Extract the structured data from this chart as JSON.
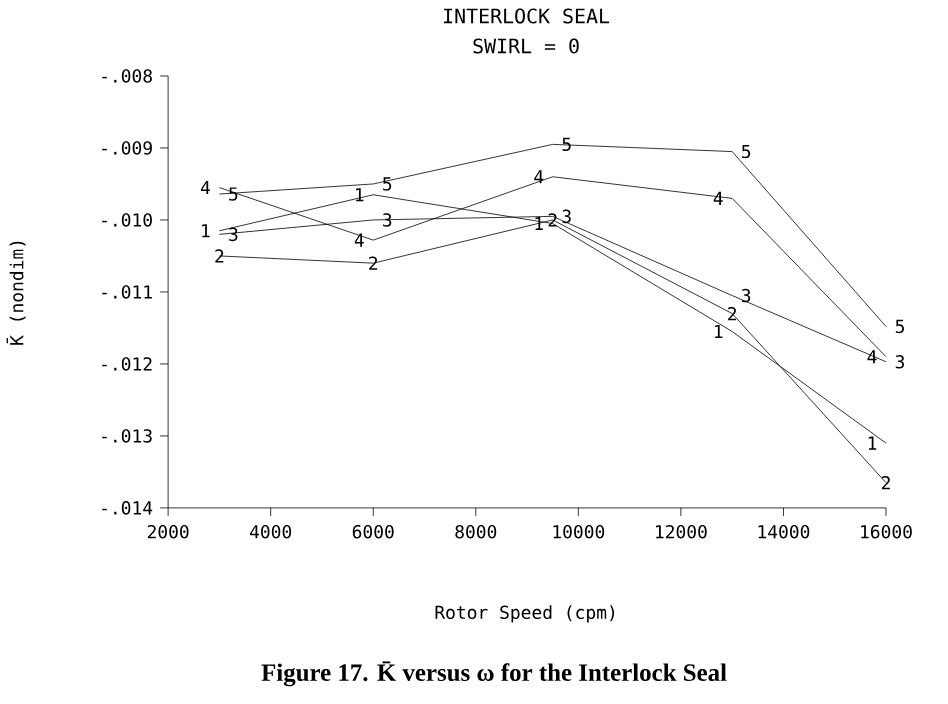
{
  "chart_data": {
    "type": "line",
    "title": "INTERLOCK SEAL",
    "subtitle": "SWIRL = 0",
    "xlabel": "Rotor Speed (cpm)",
    "ylabel": "K̄ (nondim)",
    "annotations": [
      "Figure 17. K̄ versus ω for the Interlock Seal"
    ],
    "x": [
      3000,
      6000,
      9500,
      13000,
      16000
    ],
    "xlim": [
      2000,
      16000
    ],
    "xticks": [
      2000,
      4000,
      6000,
      8000,
      10000,
      12000,
      14000,
      16000
    ],
    "ylim": [
      -0.014,
      -0.008
    ],
    "yticks": [
      {
        "value": -0.014,
        "label": "-.014"
      },
      {
        "value": -0.013,
        "label": "-.013"
      },
      {
        "value": -0.012,
        "label": "-.012"
      },
      {
        "value": -0.011,
        "label": "-.011"
      },
      {
        "value": -0.01,
        "label": "-.010"
      },
      {
        "value": -0.009,
        "label": "-.009"
      },
      {
        "value": -0.008,
        "label": "-.008"
      }
    ],
    "series": [
      {
        "name": "1",
        "color": "#000000",
        "values": [
          -0.01015,
          -0.00965,
          -0.01005,
          -0.01155,
          -0.0131
        ]
      },
      {
        "name": "2",
        "color": "#000000",
        "values": [
          -0.0105,
          -0.0106,
          -0.01,
          -0.0113,
          -0.01365
        ]
      },
      {
        "name": "3",
        "color": "#000000",
        "values": [
          -0.0102,
          -0.01,
          -0.00995,
          -0.01105,
          -0.01197
        ]
      },
      {
        "name": "4",
        "color": "#000000",
        "values": [
          -0.00955,
          -0.01028,
          -0.0094,
          -0.0097,
          -0.0119
        ]
      },
      {
        "name": "5",
        "color": "#000000",
        "values": [
          -0.00964,
          -0.0095,
          -0.00895,
          -0.00905,
          -0.01148
        ]
      }
    ]
  }
}
